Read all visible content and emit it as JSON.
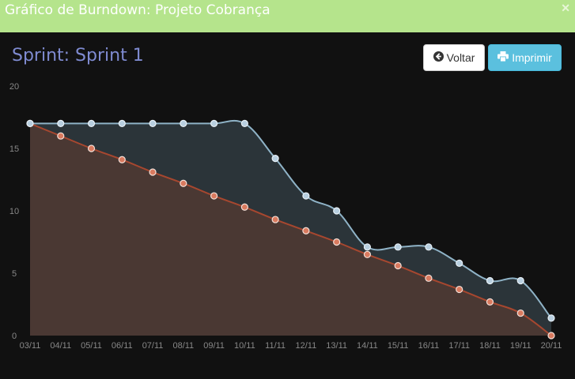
{
  "window": {
    "title": "Gráfico de Burndown: Projeto Cobrança",
    "close_glyph": "✕"
  },
  "header": {
    "sprint_title": "Sprint: Sprint 1"
  },
  "toolbar": {
    "back_label": "Voltar",
    "print_label": "Imprimir"
  },
  "colors": {
    "titlebar_bg": "#b5e48c",
    "actual_line": "#8fb3c7",
    "actual_fill": "#2b3439",
    "ideal_line": "#a7472f",
    "ideal_fill": "#4a3833",
    "print_button": "#5bc0de"
  },
  "chart_data": {
    "type": "area",
    "categories": [
      "03/11",
      "04/11",
      "05/11",
      "06/11",
      "07/11",
      "08/11",
      "09/11",
      "10/11",
      "11/11",
      "12/11",
      "13/11",
      "14/11",
      "15/11",
      "16/11",
      "17/11",
      "18/11",
      "19/11",
      "20/11"
    ],
    "series": [
      {
        "values": [
          17,
          17,
          17,
          17,
          17,
          17,
          17,
          17,
          14.2,
          11.2,
          10,
          7.1,
          7.1,
          7.1,
          5.8,
          4.4,
          4.4,
          1.4
        ]
      },
      {
        "values": [
          17,
          16,
          15,
          14.1,
          13.1,
          12.2,
          11.2,
          10.3,
          9.3,
          8.4,
          7.5,
          6.5,
          5.6,
          4.6,
          3.7,
          2.7,
          1.8,
          0
        ]
      }
    ],
    "ylim": [
      0,
      20
    ],
    "yticks": [
      0,
      5,
      10,
      15,
      20
    ],
    "grid": false
  }
}
